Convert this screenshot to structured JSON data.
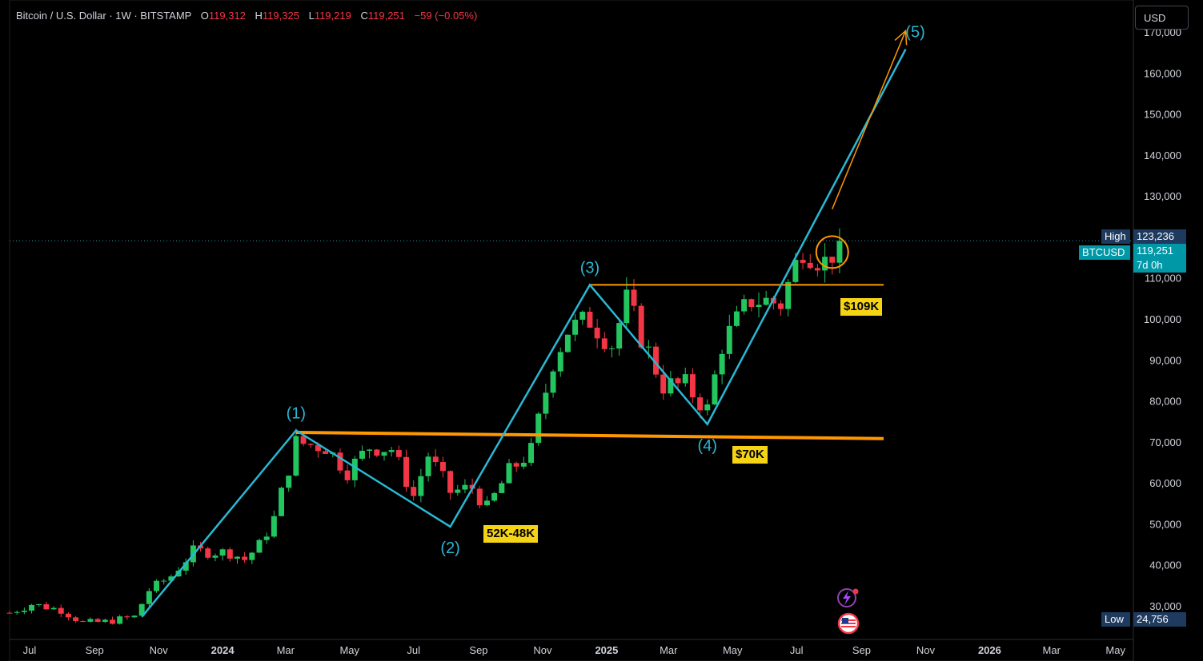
{
  "header": {
    "symbol": "Bitcoin / U.S. Dollar · 1W · BITSTAMP",
    "o_label": "O",
    "o_value": "119,312",
    "h_label": "H",
    "h_value": "119,325",
    "l_label": "L",
    "l_value": "119,219",
    "c_label": "C",
    "c_value": "119,251",
    "change": "−59 (−0.05%)"
  },
  "currency_button": "USD",
  "price_tags": {
    "high_label": "High",
    "high_value": "123,236",
    "current_label": "BTCUSD",
    "current_value": "119,251",
    "countdown": "7d 0h",
    "low_label": "Low",
    "low_value": "24,756"
  },
  "annotations": {
    "wave_labels": [
      "(1)",
      "(2)",
      "(3)",
      "(4)",
      "(5)"
    ],
    "zone_52k": "52K-48K",
    "zone_70k": "$70K",
    "zone_109k": "$109K"
  },
  "colors": {
    "bull": "#22c55e",
    "bear": "#f23645",
    "wave": "#29b8d4",
    "level": "#ff9800",
    "tag_yellow": "#f5d416",
    "grid_text": "#d1d4dc",
    "high_low_tag": "#1e3a5f",
    "current_tag": "#0097a7"
  },
  "icons": [
    "lightning-icon",
    "us-flag-icon"
  ],
  "chart_data": {
    "type": "candlestick",
    "title": "Bitcoin / U.S. Dollar · 1W · BITSTAMP",
    "timeframe": "1W",
    "x_ticks": [
      "Jul",
      "Sep",
      "Nov",
      "2024",
      "Mar",
      "May",
      "Jul",
      "Sep",
      "Nov",
      "2025",
      "Mar",
      "May",
      "Jul",
      "Sep",
      "Nov",
      "2026",
      "Mar",
      "May"
    ],
    "y_ticks": [
      30000,
      40000,
      50000,
      60000,
      70000,
      80000,
      90000,
      100000,
      110000,
      120000,
      130000,
      140000,
      150000,
      160000,
      170000
    ],
    "y_tick_labels": [
      "30,000",
      "40,000",
      "50,000",
      "60,000",
      "70,000",
      "80,000",
      "90,000",
      "100,000",
      "110,000",
      "120,000",
      "130,000",
      "140,000",
      "150,000",
      "160,000",
      "170,000"
    ],
    "ylim": [
      22000,
      178000
    ],
    "xlim": [
      "2023-06-12",
      "2026-05-18"
    ],
    "last_price": 119251,
    "period_high": 123236,
    "period_low": 24756,
    "weekly_close_path": [
      [
        "2023-06-12",
        28500
      ],
      [
        "2023-07-03",
        30600
      ],
      [
        "2023-07-31",
        29200
      ],
      [
        "2023-08-21",
        26000
      ],
      [
        "2023-09-11",
        26300
      ],
      [
        "2023-10-09",
        27500
      ],
      [
        "2023-10-23",
        34000
      ],
      [
        "2023-11-13",
        37500
      ],
      [
        "2023-12-04",
        43500
      ],
      [
        "2024-01-08",
        43200
      ],
      [
        "2024-01-22",
        41500
      ],
      [
        "2024-02-05",
        45000
      ],
      [
        "2024-02-19",
        51500
      ],
      [
        "2024-03-11",
        70000
      ],
      [
        "2024-04-08",
        69000
      ],
      [
        "2024-04-29",
        63000
      ],
      [
        "2024-05-20",
        69000
      ],
      [
        "2024-06-10",
        68500
      ],
      [
        "2024-07-01",
        57000
      ],
      [
        "2024-07-15",
        67000
      ],
      [
        "2024-08-05",
        58000
      ],
      [
        "2024-08-26",
        59000
      ],
      [
        "2024-09-09",
        54000
      ],
      [
        "2024-09-30",
        63000
      ],
      [
        "2024-10-21",
        68000
      ],
      [
        "2024-11-11",
        90000
      ],
      [
        "2024-11-25",
        97500
      ],
      [
        "2024-12-16",
        100000
      ],
      [
        "2025-01-06",
        94000
      ],
      [
        "2025-01-20",
        104500
      ],
      [
        "2025-02-03",
        96000
      ],
      [
        "2025-02-24",
        84000
      ],
      [
        "2025-03-17",
        84000
      ],
      [
        "2025-04-07",
        78000
      ],
      [
        "2025-04-21",
        94000
      ],
      [
        "2025-05-19",
        105000
      ],
      [
        "2025-06-16",
        104000
      ],
      [
        "2025-07-07",
        118000
      ],
      [
        "2025-07-28",
        114000
      ],
      [
        "2025-08-11",
        119251
      ]
    ],
    "waves": [
      {
        "label": "(1)",
        "date": "2024-03-11",
        "price": 73000
      },
      {
        "label": "(2)",
        "date": "2024-08-05",
        "price": 49500
      },
      {
        "label": "(3)",
        "date": "2024-12-16",
        "price": 108500
      },
      {
        "label": "(4)",
        "date": "2025-04-07",
        "price": 74500
      },
      {
        "label": "(5)",
        "date": "2025-10-13",
        "price": 166000
      }
    ],
    "wave_path_start": {
      "date": "2023-10-16",
      "price": 27500
    },
    "levels": [
      {
        "label": "$70K",
        "from": "2024-03-11",
        "to": "2025-09-22",
        "price_from": 72500,
        "price_to": 71000
      },
      {
        "label": "$109K",
        "from": "2024-12-16",
        "to": "2025-09-22",
        "price": 108500
      }
    ],
    "zones": [
      {
        "label": "52K-48K",
        "date": "2024-09-09",
        "price": 46200
      }
    ],
    "projection_arrow": {
      "from": {
        "date": "2025-08-04",
        "price": 127000
      },
      "to": {
        "date": "2025-10-13",
        "price": 170500
      }
    },
    "highlight_circle": {
      "date": "2025-08-04",
      "price": 116500
    }
  }
}
